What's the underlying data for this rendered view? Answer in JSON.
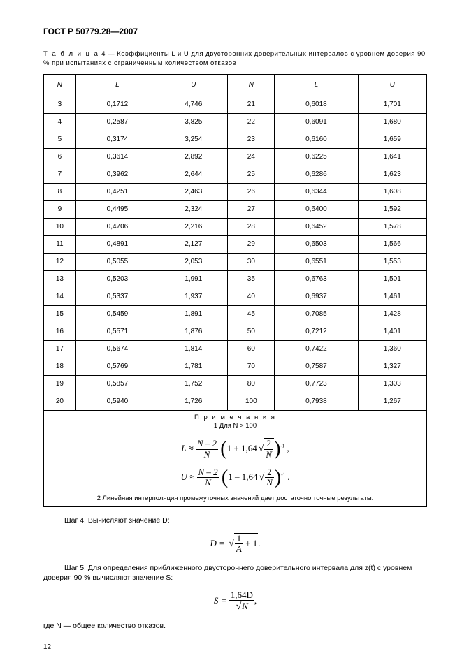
{
  "header": "ГОСТ Р 50779.28—2007",
  "table_caption_prefix": "Т а б л и ц а",
  "table_caption": "  4 — Коэффициенты L и U для двусторонних доверительных интервалов с уровнем доверия 90 % при испытаниях с ограниченным количеством отказов",
  "columns": [
    "N",
    "L",
    "U",
    "N",
    "L",
    "U"
  ],
  "rows": [
    [
      "3",
      "0,1712",
      "4,746",
      "21",
      "0,6018",
      "1,701"
    ],
    [
      "4",
      "0,2587",
      "3,825",
      "22",
      "0,6091",
      "1,680"
    ],
    [
      "5",
      "0,3174",
      "3,254",
      "23",
      "0,6160",
      "1,659"
    ],
    [
      "6",
      "0,3614",
      "2,892",
      "24",
      "0,6225",
      "1,641"
    ],
    [
      "7",
      "0,3962",
      "2,644",
      "25",
      "0,6286",
      "1,623"
    ],
    [
      "8",
      "0,4251",
      "2,463",
      "26",
      "0,6344",
      "1,608"
    ],
    [
      "9",
      "0,4495",
      "2,324",
      "27",
      "0,6400",
      "1,592"
    ],
    [
      "10",
      "0,4706",
      "2,216",
      "28",
      "0,6452",
      "1,578"
    ],
    [
      "11",
      "0,4891",
      "2,127",
      "29",
      "0,6503",
      "1,566"
    ],
    [
      "12",
      "0,5055",
      "2,053",
      "30",
      "0,6551",
      "1,553"
    ],
    [
      "13",
      "0,5203",
      "1,991",
      "35",
      "0,6763",
      "1,501"
    ],
    [
      "14",
      "0,5337",
      "1,937",
      "40",
      "0,6937",
      "1,461"
    ],
    [
      "15",
      "0,5459",
      "1,891",
      "45",
      "0,7085",
      "1,428"
    ],
    [
      "16",
      "0,5571",
      "1,876",
      "50",
      "0,7212",
      "1,401"
    ],
    [
      "17",
      "0,5674",
      "1,814",
      "60",
      "0,7422",
      "1,360"
    ],
    [
      "18",
      "0,5769",
      "1,781",
      "70",
      "0,7587",
      "1,327"
    ],
    [
      "19",
      "0,5857",
      "1,752",
      "80",
      "0,7723",
      "1,303"
    ],
    [
      "20",
      "0,5940",
      "1,726",
      "100",
      "0,7938",
      "1,267"
    ]
  ],
  "notes_label": "П р и м е ч а н и я",
  "note1": "1  Для N > 100",
  "note2": "2  Линейная интерполяция промежуточных значений дает достаточно точные результаты.",
  "step4": "Шаг 4. Вычисляют значение D:",
  "step5": "Шаг  5. Для определения приближенного двустороннего доверительного интервала для z(t) с уровнем доверия 90 % вычисляют значение S:",
  "where": "где N — общее количество отказов.",
  "page_number": "12",
  "formula_L_lhs": "L ≈ ",
  "formula_U_lhs": "U ≈ ",
  "formula_D_lhs": "D = ",
  "formula_S_lhs": "S = ",
  "frac_top1": "N – 2",
  "frac_bot1": "N",
  "coef": "1,64",
  "sqrt_inner_top": "2",
  "sqrt_inner_bot": "N",
  "D_inner_top": "1",
  "D_inner_bot": "A",
  "D_plus": " + 1",
  "S_top": "1,64D",
  "S_bot_inner": "N",
  "colors": {
    "text": "#000000",
    "background": "#ffffff",
    "border": "#000000"
  },
  "font_sizes": {
    "header": 12,
    "caption": 9.5,
    "table": 10,
    "body": 10.5,
    "formula": 13
  }
}
